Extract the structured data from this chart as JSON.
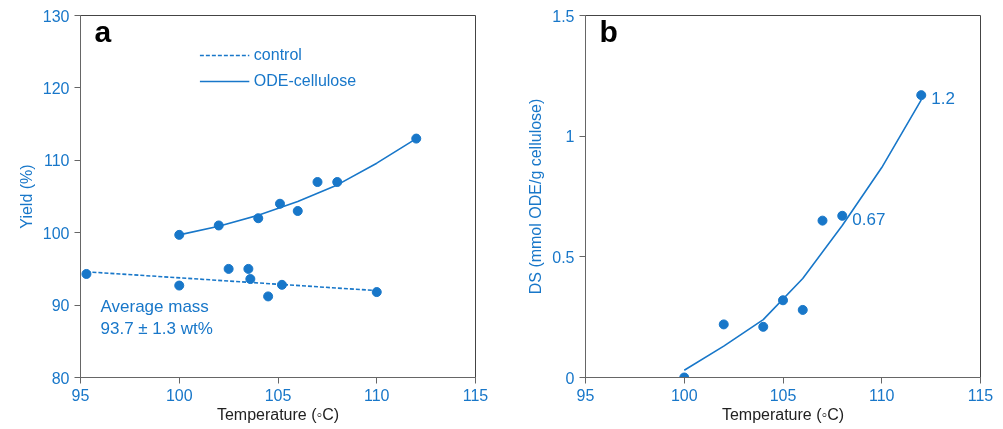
{
  "chart_data": [
    {
      "type": "scatter",
      "xlabel": "Temperature (◦C)",
      "ylabel": "Yield (%)",
      "xlim": [
        95,
        115
      ],
      "ylim": [
        80,
        130
      ],
      "xticks": [
        95,
        100,
        105,
        110,
        115
      ],
      "yticks": [
        80,
        90,
        100,
        110,
        120,
        130
      ],
      "legend": "top",
      "annotations": [
        "a",
        "Average mass",
        "93.7 ± 1.3 wt%"
      ],
      "series": [
        {
          "marker": "circle",
          "color": "#1877c9",
          "x": [
            95.3,
            100,
            102.5,
            103.5,
            103.6,
            104.5,
            105.2,
            110
          ],
          "values": [
            94.3,
            92.7,
            95.0,
            95.0,
            93.6,
            91.2,
            92.8,
            91.8
          ]
        },
        {
          "marker": "circle",
          "color": "#1877c9",
          "x": [
            100,
            102,
            104,
            105.1,
            106,
            107,
            108,
            112
          ],
          "values": [
            99.7,
            101,
            102,
            104,
            103,
            107,
            107,
            113
          ]
        },
        {
          "type": "line",
          "name": "control",
          "line_style": "dashed",
          "marker": "none",
          "color": "#1877c9",
          "x": [
            95.3,
            110
          ],
          "values": [
            94.6,
            92.0
          ]
        },
        {
          "type": "line",
          "name": "ODE-cellulose",
          "line_style": "solid",
          "marker": "none",
          "color": "#1877c9",
          "x": [
            100,
            102,
            104,
            106,
            108,
            110,
            112
          ],
          "values": [
            99.7,
            100.9,
            102.4,
            104.3,
            106.6,
            109.6,
            113.0
          ]
        }
      ]
    },
    {
      "type": "scatter",
      "xlabel": "Temperature (◦C)",
      "ylabel": "DS (mmol ODE/g cellulose)",
      "xlim": [
        95,
        115
      ],
      "ylim": [
        0,
        1.5
      ],
      "xticks": [
        95,
        100,
        105,
        110,
        115
      ],
      "yticks": [
        0,
        0.5,
        1,
        1.5
      ],
      "annotations": [
        "b"
      ],
      "series": [
        {
          "marker": "circle",
          "color": "#1877c9",
          "x": [
            100,
            102,
            104,
            105,
            106,
            107,
            108,
            112
          ],
          "values": [
            0,
            0.22,
            0.21,
            0.32,
            0.28,
            0.65,
            0.67,
            1.17
          ],
          "value_labels": [
            null,
            null,
            null,
            null,
            null,
            null,
            "0.67",
            "1.2"
          ]
        },
        {
          "type": "line",
          "line_style": "solid",
          "marker": "none",
          "color": "#1877c9",
          "x": [
            100,
            102,
            104,
            106,
            108,
            110,
            112
          ],
          "values": [
            0.03,
            0.13,
            0.24,
            0.41,
            0.63,
            0.87,
            1.15
          ]
        }
      ]
    }
  ]
}
